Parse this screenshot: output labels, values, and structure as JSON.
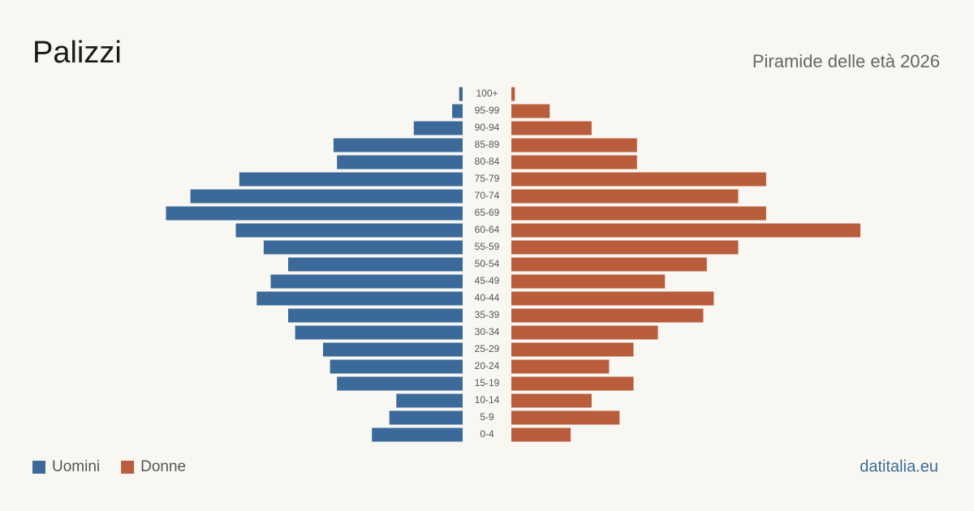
{
  "chart_data": {
    "type": "pyramid",
    "title": "Palizzi",
    "subtitle": "Piramide delle età 2026",
    "source": "datitalia.eu",
    "categories": [
      "100+",
      "95-99",
      "90-94",
      "85-89",
      "80-84",
      "75-79",
      "70-74",
      "65-69",
      "60-64",
      "55-59",
      "50-54",
      "45-49",
      "40-44",
      "35-39",
      "30-34",
      "25-29",
      "20-24",
      "15-19",
      "10-14",
      "5-9",
      "0-4"
    ],
    "series": [
      {
        "name": "Uomini",
        "color": "#3b6a9a",
        "values": [
          1,
          3,
          14,
          37,
          36,
          64,
          78,
          85,
          65,
          57,
          50,
          55,
          59,
          50,
          48,
          40,
          38,
          36,
          19,
          21,
          26
        ]
      },
      {
        "name": "Donne",
        "color": "#b95d3c",
        "values": [
          1,
          11,
          23,
          36,
          36,
          73,
          65,
          73,
          100,
          65,
          56,
          44,
          58,
          55,
          42,
          35,
          28,
          35,
          23,
          31,
          17
        ]
      }
    ]
  }
}
